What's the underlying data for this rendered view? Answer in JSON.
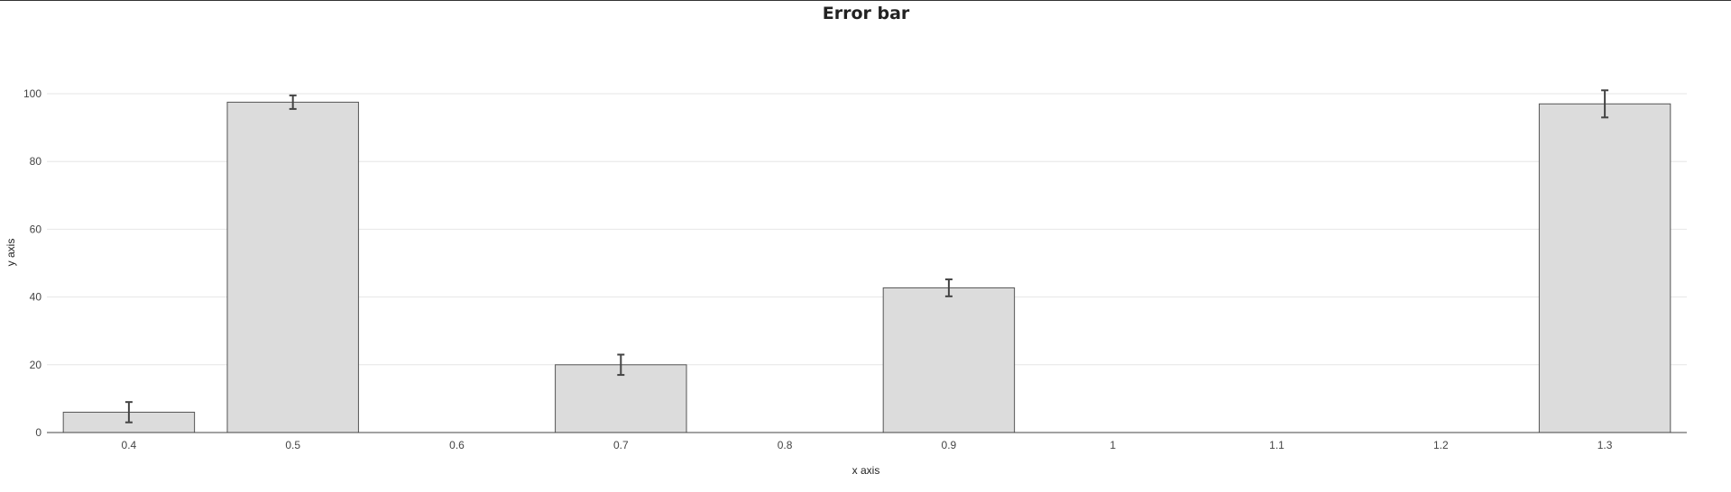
{
  "chart_data": {
    "type": "bar",
    "title": "Error bar",
    "xlabel": "x axis",
    "ylabel": "y axis",
    "x": [
      0.4,
      0.5,
      0.7,
      0.9,
      1.3
    ],
    "values": [
      6,
      97.5,
      20,
      42.7,
      97
    ],
    "errors": [
      3,
      2,
      3,
      2.5,
      4
    ],
    "xlim": [
      0.35,
      1.35
    ],
    "ylim": [
      0,
      100
    ],
    "xticks": [
      "0.4",
      "0.5",
      "0.6",
      "0.7",
      "0.8",
      "0.9",
      "1",
      "1.1",
      "1.2",
      "1.3"
    ],
    "yticks": [
      "0",
      "20",
      "40",
      "60",
      "80",
      "100"
    ],
    "grid": true,
    "colors": {
      "bar_fill": "#dcdcdc",
      "bar_stroke": "#555555",
      "error_bar": "#444444"
    }
  }
}
